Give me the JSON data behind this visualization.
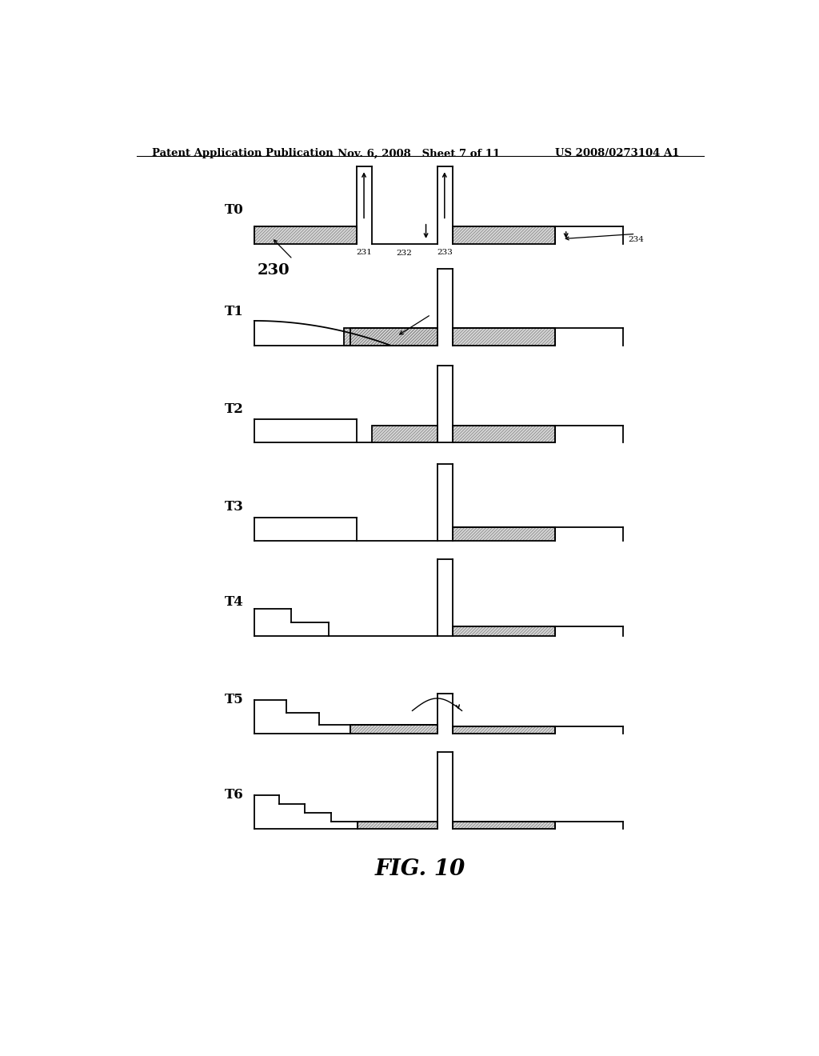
{
  "bg_color": "#ffffff",
  "header_left": "Patent Application Publication",
  "header_mid": "Nov. 6, 2008   Sheet 7 of 11",
  "header_right": "US 2008/0273104 A1",
  "fig_label": "FIG. 10",
  "lw": 1.3
}
